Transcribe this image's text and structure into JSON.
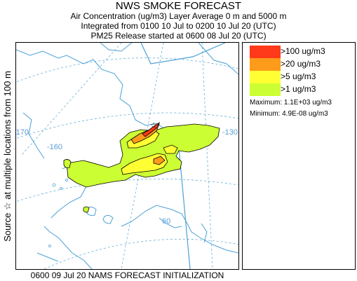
{
  "header": {
    "title": "NWS SMOKE FORECAST",
    "line1": "Air Concentration (ug/m3) Layer Average     0 m and  5000 m",
    "line2": "Integrated from 0100 10 Jul to 0200 10 Jul 20 (UTC)",
    "line3": "PM25 Release started at 0600 08 Jul 20 (UTC)"
  },
  "side_label": "Source ☆   at multiple locations     from  100 m",
  "map": {
    "graticule_labels": [
      "-170",
      "-160",
      "-130",
      "60"
    ],
    "source_marker": "☆"
  },
  "legend": {
    "items": [
      {
        "label": ">100 ug/m3",
        "color": "#ff3a1a"
      },
      {
        "label": ">20 ug/m3",
        "color": "#ff9b1a"
      },
      {
        "label": ">5 ug/m3",
        "color": "#ffff33"
      },
      {
        "label": ">1 ug/m3",
        "color": "#ccff33"
      }
    ],
    "maximum": "Maximum:  1.1E+03 ug/m3",
    "minimum": "Minimum:  4.9E-08 ug/m3"
  },
  "footer": "0600 09 Jul 20 NAMS FORECAST INITIALIZATION",
  "colors": {
    "coast": "#4aa0d6",
    "graticule": "#6aaed6",
    "contour": "#000000"
  }
}
